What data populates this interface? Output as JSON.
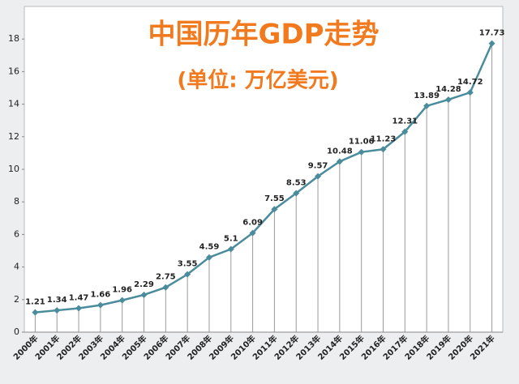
{
  "chart_data": {
    "type": "line",
    "title": "中国历年GDP走势",
    "subtitle": "(单位: 万亿美元)",
    "categories": [
      "2000年",
      "2001年",
      "2002年",
      "2003年",
      "2004年",
      "2005年",
      "2006年",
      "2007年",
      "2008年",
      "2009年",
      "2010年",
      "2011年",
      "2012年",
      "2013年",
      "2014年",
      "2015年",
      "2016年",
      "2017年",
      "2018年",
      "2019年",
      "2020年",
      "2021年"
    ],
    "values": [
      1.21,
      1.34,
      1.47,
      1.66,
      1.96,
      2.29,
      2.75,
      3.55,
      4.59,
      5.1,
      6.09,
      7.55,
      8.53,
      9.57,
      10.48,
      11.06,
      11.23,
      12.31,
      13.89,
      14.28,
      14.72,
      17.73
    ],
    "color": "#4a8c9c",
    "title_color": "#f27a1e",
    "ylim": [
      0,
      20
    ],
    "yticks": [
      0,
      2,
      4,
      6,
      8,
      10,
      12,
      14,
      16,
      18
    ],
    "drop_lines": true
  }
}
